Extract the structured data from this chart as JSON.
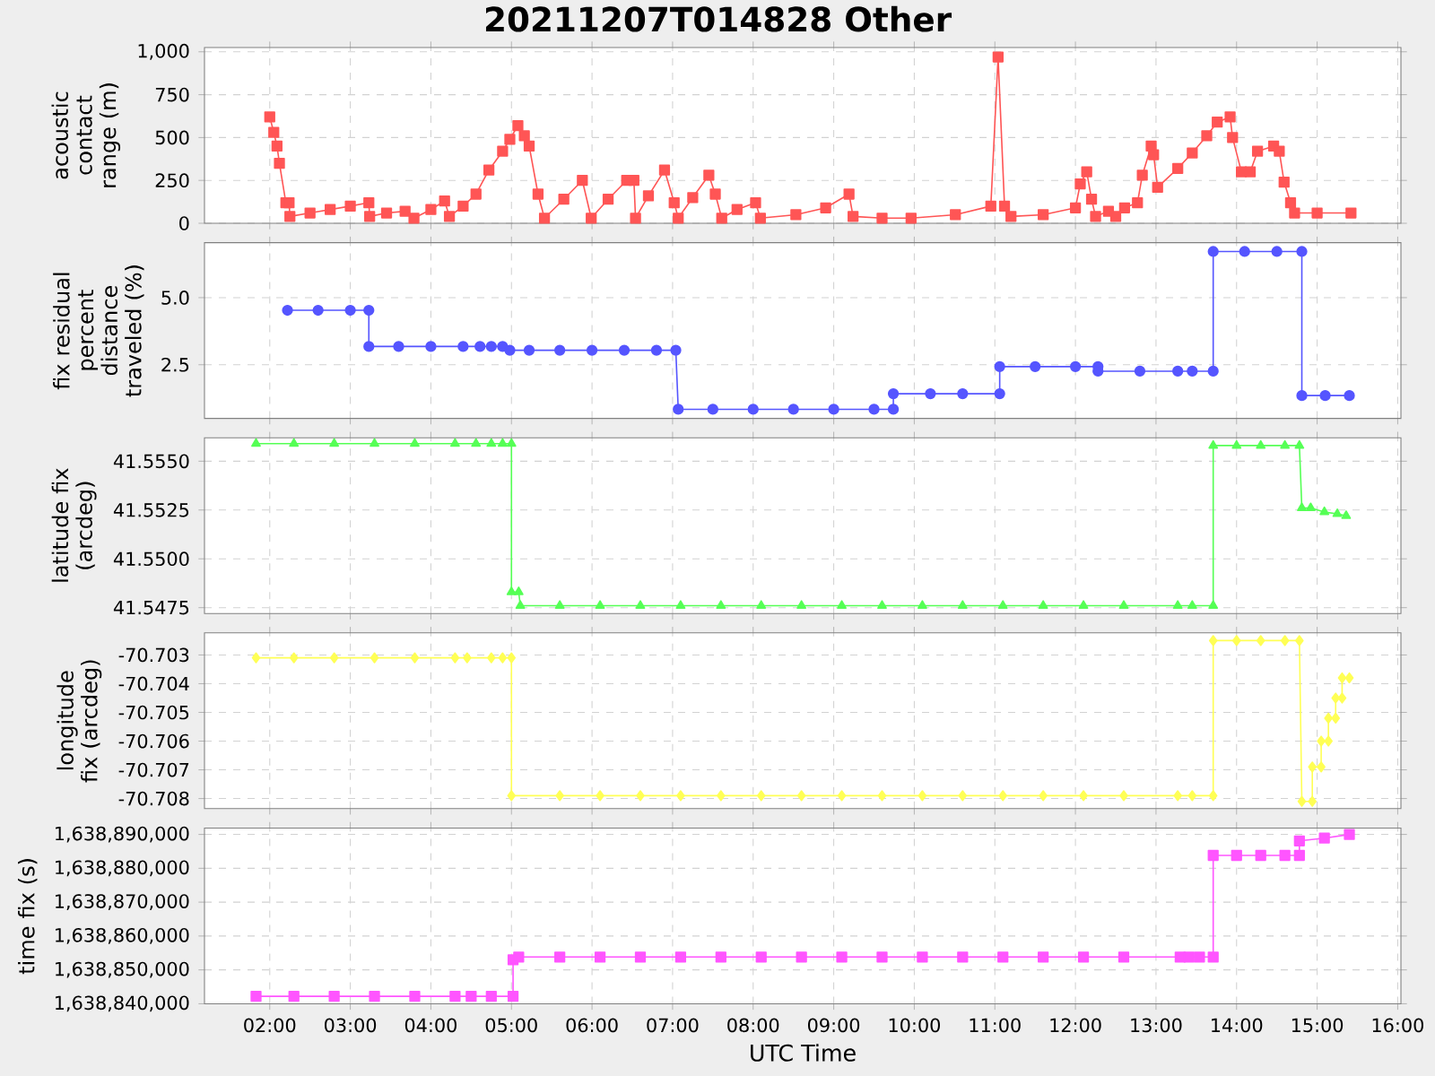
{
  "chart_data": [
    {
      "type": "line",
      "title": "20211207T014828 Other",
      "ylabel": "acoustic contact range (m)",
      "color": "#ff5555",
      "marker": "square",
      "grid": true,
      "tick_labels": "y",
      "xlim": [
        1.19,
        16.04
      ],
      "ylim": [
        0,
        1025
      ],
      "xticks": [
        2,
        3,
        4,
        5,
        6,
        7,
        8,
        9,
        10,
        11,
        12,
        13,
        14,
        15,
        16
      ],
      "yticks": [
        0,
        250,
        500,
        750,
        {
          "value": 1000,
          "label": "1,000"
        }
      ],
      "x": [
        2.0,
        2.05,
        2.09,
        2.12,
        2.2,
        2.24,
        2.25,
        2.5,
        2.75,
        3.0,
        3.23,
        3.24,
        3.45,
        3.68,
        3.79,
        4.0,
        4.17,
        4.23,
        4.4,
        4.56,
        4.72,
        4.89,
        4.98,
        5.08,
        5.16,
        5.22,
        5.33,
        5.41,
        5.65,
        5.88,
        5.99,
        6.2,
        6.43,
        6.52,
        6.54,
        6.7,
        6.9,
        7.02,
        7.07,
        7.25,
        7.45,
        7.53,
        7.61,
        7.8,
        8.03,
        8.09,
        8.53,
        8.9,
        9.19,
        9.24,
        9.6,
        9.96,
        10.51,
        10.95,
        11.04,
        11.12,
        11.2,
        11.6,
        12.0,
        12.06,
        12.14,
        12.2,
        12.25,
        12.41,
        12.5,
        12.61,
        12.77,
        12.83,
        12.94,
        12.97,
        13.02,
        13.27,
        13.45,
        13.63,
        13.76,
        13.92,
        13.95,
        14.06,
        14.17,
        14.26,
        14.46,
        14.53,
        14.59,
        14.67,
        14.72,
        15.0,
        15.42
      ],
      "values": [
        620,
        530,
        450,
        350,
        120,
        120,
        40,
        60,
        80,
        100,
        120,
        40,
        60,
        70,
        30,
        80,
        130,
        40,
        100,
        170,
        310,
        420,
        490,
        570,
        510,
        450,
        170,
        30,
        140,
        250,
        30,
        140,
        250,
        250,
        30,
        160,
        310,
        120,
        30,
        150,
        280,
        170,
        30,
        80,
        120,
        30,
        50,
        90,
        170,
        40,
        30,
        30,
        50,
        100,
        970,
        100,
        40,
        50,
        90,
        230,
        300,
        140,
        40,
        70,
        40,
        90,
        120,
        280,
        450,
        400,
        210,
        320,
        410,
        510,
        590,
        620,
        500,
        300,
        300,
        420,
        450,
        420,
        240,
        120,
        60,
        60,
        60
      ]
    },
    {
      "type": "line",
      "ylabel": "fix residual percent distance traveled (%)",
      "color": "#5555ff",
      "marker": "circle",
      "grid": true,
      "tick_labels": "y",
      "xlim": [
        1.19,
        16.04
      ],
      "ylim": [
        0.5,
        7.05
      ],
      "xticks": [
        2,
        3,
        4,
        5,
        6,
        7,
        8,
        9,
        10,
        11,
        12,
        13,
        14,
        15,
        16
      ],
      "yticks": [
        2.5,
        {
          "value": 5,
          "label": "5.0"
        }
      ],
      "x": [
        2.22,
        2.6,
        3.0,
        3.23,
        3.23,
        3.6,
        4.0,
        4.4,
        4.61,
        4.75,
        4.89,
        4.98,
        5.22,
        5.6,
        6.0,
        6.4,
        6.8,
        7.04,
        7.07,
        7.5,
        8.0,
        8.5,
        9.0,
        9.5,
        9.74,
        9.74,
        10.2,
        10.6,
        11.06,
        11.06,
        11.5,
        12.0,
        12.28,
        12.28,
        12.8,
        13.27,
        13.45,
        13.71,
        13.71,
        14.1,
        14.5,
        14.81,
        14.81,
        15.1,
        15.4
      ],
      "values": [
        4.53,
        4.53,
        4.53,
        4.53,
        3.18,
        3.18,
        3.18,
        3.18,
        3.18,
        3.18,
        3.18,
        3.04,
        3.04,
        3.04,
        3.04,
        3.04,
        3.04,
        3.04,
        0.84,
        0.84,
        0.84,
        0.84,
        0.84,
        0.84,
        0.84,
        1.42,
        1.42,
        1.42,
        1.42,
        2.43,
        2.43,
        2.43,
        2.43,
        2.26,
        2.26,
        2.26,
        2.26,
        2.26,
        6.72,
        6.72,
        6.72,
        6.72,
        1.35,
        1.35,
        1.35
      ]
    },
    {
      "type": "line",
      "ylabel": "latitude fix (arcdeg)",
      "color": "#55ff55",
      "marker": "triangle",
      "grid": true,
      "tick_labels": "y",
      "xlim": [
        1.19,
        16.04
      ],
      "ylim": [
        41.5472,
        41.5562
      ],
      "xticks": [
        2,
        3,
        4,
        5,
        6,
        7,
        8,
        9,
        10,
        11,
        12,
        13,
        14,
        15,
        16
      ],
      "yticks": [
        41.5475,
        {
          "value": 41.55,
          "label": "41.5500"
        },
        41.5525,
        {
          "value": 41.555,
          "label": "41.5550"
        }
      ],
      "x": [
        1.83,
        2.3,
        2.8,
        3.3,
        3.8,
        4.3,
        4.56,
        4.75,
        4.89,
        5.0,
        5.0,
        5.09,
        5.11,
        5.6,
        6.1,
        6.6,
        7.1,
        7.6,
        8.1,
        8.6,
        9.1,
        9.6,
        10.1,
        10.6,
        11.1,
        11.6,
        12.1,
        12.6,
        13.27,
        13.45,
        13.71,
        13.71,
        14.0,
        14.3,
        14.6,
        14.78,
        14.81,
        14.92,
        15.09,
        15.25,
        15.36
      ],
      "values": [
        41.5559,
        41.5559,
        41.5559,
        41.5559,
        41.5559,
        41.5559,
        41.5559,
        41.5559,
        41.5559,
        41.5559,
        41.5483,
        41.5483,
        41.5476,
        41.5476,
        41.5476,
        41.5476,
        41.5476,
        41.5476,
        41.5476,
        41.5476,
        41.5476,
        41.5476,
        41.5476,
        41.5476,
        41.5476,
        41.5476,
        41.5476,
        41.5476,
        41.5476,
        41.5476,
        41.5476,
        41.5558,
        41.5558,
        41.5558,
        41.5558,
        41.5558,
        41.5526,
        41.5526,
        41.5524,
        41.5523,
        41.5522
      ]
    },
    {
      "type": "line",
      "ylabel": "longitude fix (arcdeg)",
      "color": "#ffff55",
      "marker": "diamond",
      "grid": true,
      "tick_labels": "y",
      "xlim": [
        1.19,
        16.04
      ],
      "ylim": [
        -70.70835,
        -70.70223
      ],
      "xticks": [
        2,
        3,
        4,
        5,
        6,
        7,
        8,
        9,
        10,
        11,
        12,
        13,
        14,
        15,
        16
      ],
      "yticks": [
        -70.708,
        -70.707,
        -70.706,
        -70.705,
        -70.704,
        -70.703
      ],
      "x": [
        1.83,
        2.3,
        2.8,
        3.3,
        3.8,
        4.3,
        4.45,
        4.75,
        4.89,
        5.0,
        5.0,
        5.6,
        6.1,
        6.6,
        7.1,
        7.6,
        8.1,
        8.6,
        9.1,
        9.6,
        10.1,
        10.6,
        11.1,
        11.6,
        12.1,
        12.6,
        13.27,
        13.45,
        13.71,
        13.71,
        14.0,
        14.3,
        14.6,
        14.78,
        14.81,
        14.94,
        14.94,
        15.05,
        15.05,
        15.14,
        15.14,
        15.23,
        15.23,
        15.31,
        15.31,
        15.4
      ],
      "values": [
        -70.7031,
        -70.7031,
        -70.7031,
        -70.7031,
        -70.7031,
        -70.7031,
        -70.7031,
        -70.7031,
        -70.7031,
        -70.7031,
        -70.7079,
        -70.7079,
        -70.7079,
        -70.7079,
        -70.7079,
        -70.7079,
        -70.7079,
        -70.7079,
        -70.7079,
        -70.7079,
        -70.7079,
        -70.7079,
        -70.7079,
        -70.7079,
        -70.7079,
        -70.7079,
        -70.7079,
        -70.7079,
        -70.7079,
        -70.7025,
        -70.7025,
        -70.7025,
        -70.7025,
        -70.7025,
        -70.7081,
        -70.7081,
        -70.7069,
        -70.7069,
        -70.706,
        -70.706,
        -70.7052,
        -70.7052,
        -70.7045,
        -70.7045,
        -70.7038,
        -70.7038
      ]
    },
    {
      "type": "line",
      "xlabel": "UTC Time",
      "ylabel": "time fix (s)",
      "color": "#ff55ff",
      "marker": "square",
      "grid": true,
      "xlim": [
        1.19,
        16.04
      ],
      "ylim": [
        1638840000,
        1638891900
      ],
      "xticks": [
        {
          "value": 2,
          "label": "02:00"
        },
        {
          "value": 3,
          "label": "03:00"
        },
        {
          "value": 4,
          "label": "04:00"
        },
        {
          "value": 5,
          "label": "05:00"
        },
        {
          "value": 6,
          "label": "06:00"
        },
        {
          "value": 7,
          "label": "07:00"
        },
        {
          "value": 8,
          "label": "08:00"
        },
        {
          "value": 9,
          "label": "09:00"
        },
        {
          "value": 10,
          "label": "10:00"
        },
        {
          "value": 11,
          "label": "11:00"
        },
        {
          "value": 12,
          "label": "12:00"
        },
        {
          "value": 13,
          "label": "13:00"
        },
        {
          "value": 14,
          "label": "14:00"
        },
        {
          "value": 15,
          "label": "15:00"
        },
        {
          "value": 16,
          "label": "16:00"
        }
      ],
      "yticks": [
        {
          "value": 1638840000,
          "label": "1,638,840,000"
        },
        {
          "value": 1638850000,
          "label": "1,638,850,000"
        },
        {
          "value": 1638860000,
          "label": "1,638,860,000"
        },
        {
          "value": 1638870000,
          "label": "1,638,870,000"
        },
        {
          "value": 1638880000,
          "label": "1,638,880,000"
        },
        {
          "value": 1638890000,
          "label": "1,638,890,000"
        }
      ],
      "x": [
        1.83,
        2.3,
        2.8,
        3.3,
        3.8,
        4.3,
        4.5,
        4.75,
        5.02,
        5.02,
        5.09,
        5.6,
        6.1,
        6.6,
        7.1,
        7.6,
        8.1,
        8.6,
        9.1,
        9.6,
        10.1,
        10.6,
        11.1,
        11.6,
        12.1,
        12.6,
        13.3,
        13.41,
        13.54,
        13.71,
        13.71,
        14.0,
        14.3,
        14.6,
        14.78,
        14.78,
        15.09,
        15.4
      ],
      "values": [
        1638842200,
        1638842200,
        1638842200,
        1638842200,
        1638842200,
        1638842200,
        1638842200,
        1638842200,
        1638842200,
        1638853000,
        1638853800,
        1638853800,
        1638853800,
        1638853800,
        1638853800,
        1638853800,
        1638853800,
        1638853800,
        1638853800,
        1638853800,
        1638853800,
        1638853800,
        1638853800,
        1638853800,
        1638853800,
        1638853800,
        1638853800,
        1638853800,
        1638853800,
        1638853800,
        1638883800,
        1638883800,
        1638883800,
        1638883800,
        1638883800,
        1638888100,
        1638888900,
        1638890000
      ]
    }
  ]
}
